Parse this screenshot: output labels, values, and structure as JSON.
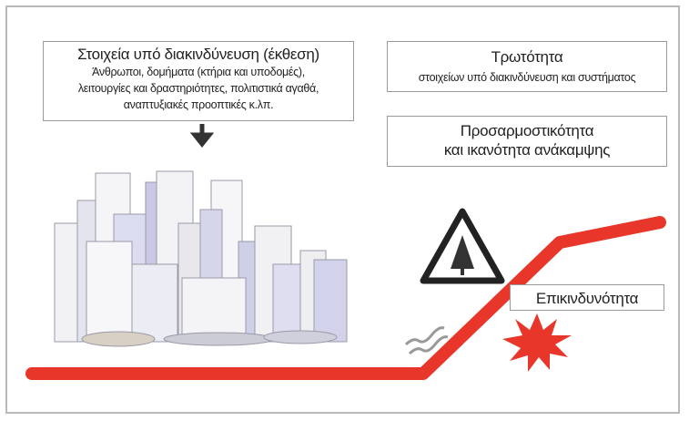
{
  "exposure": {
    "title": "Στοιχεία υπό διακινδύνευση (έκθεση)",
    "lines": [
      "Άνθρωποι, δομήματα (κτήρια και υποδομές),",
      "λειτουργίες και δραστηριότητες, πολιτιστικά αγαθά,",
      "αναπτυξιακές προοπτικές κ.λπ."
    ]
  },
  "vulnerability": {
    "title": "Τρωτότητα",
    "subtitle": "στοιχείων υπό διακινδύνευση και συστήματος"
  },
  "resilience": {
    "lines": [
      "Προσαρμοστικότητα",
      "και ικανότητα ανάκαμψης"
    ]
  },
  "hazard": {
    "label": "Επικινδυνότητα"
  }
}
